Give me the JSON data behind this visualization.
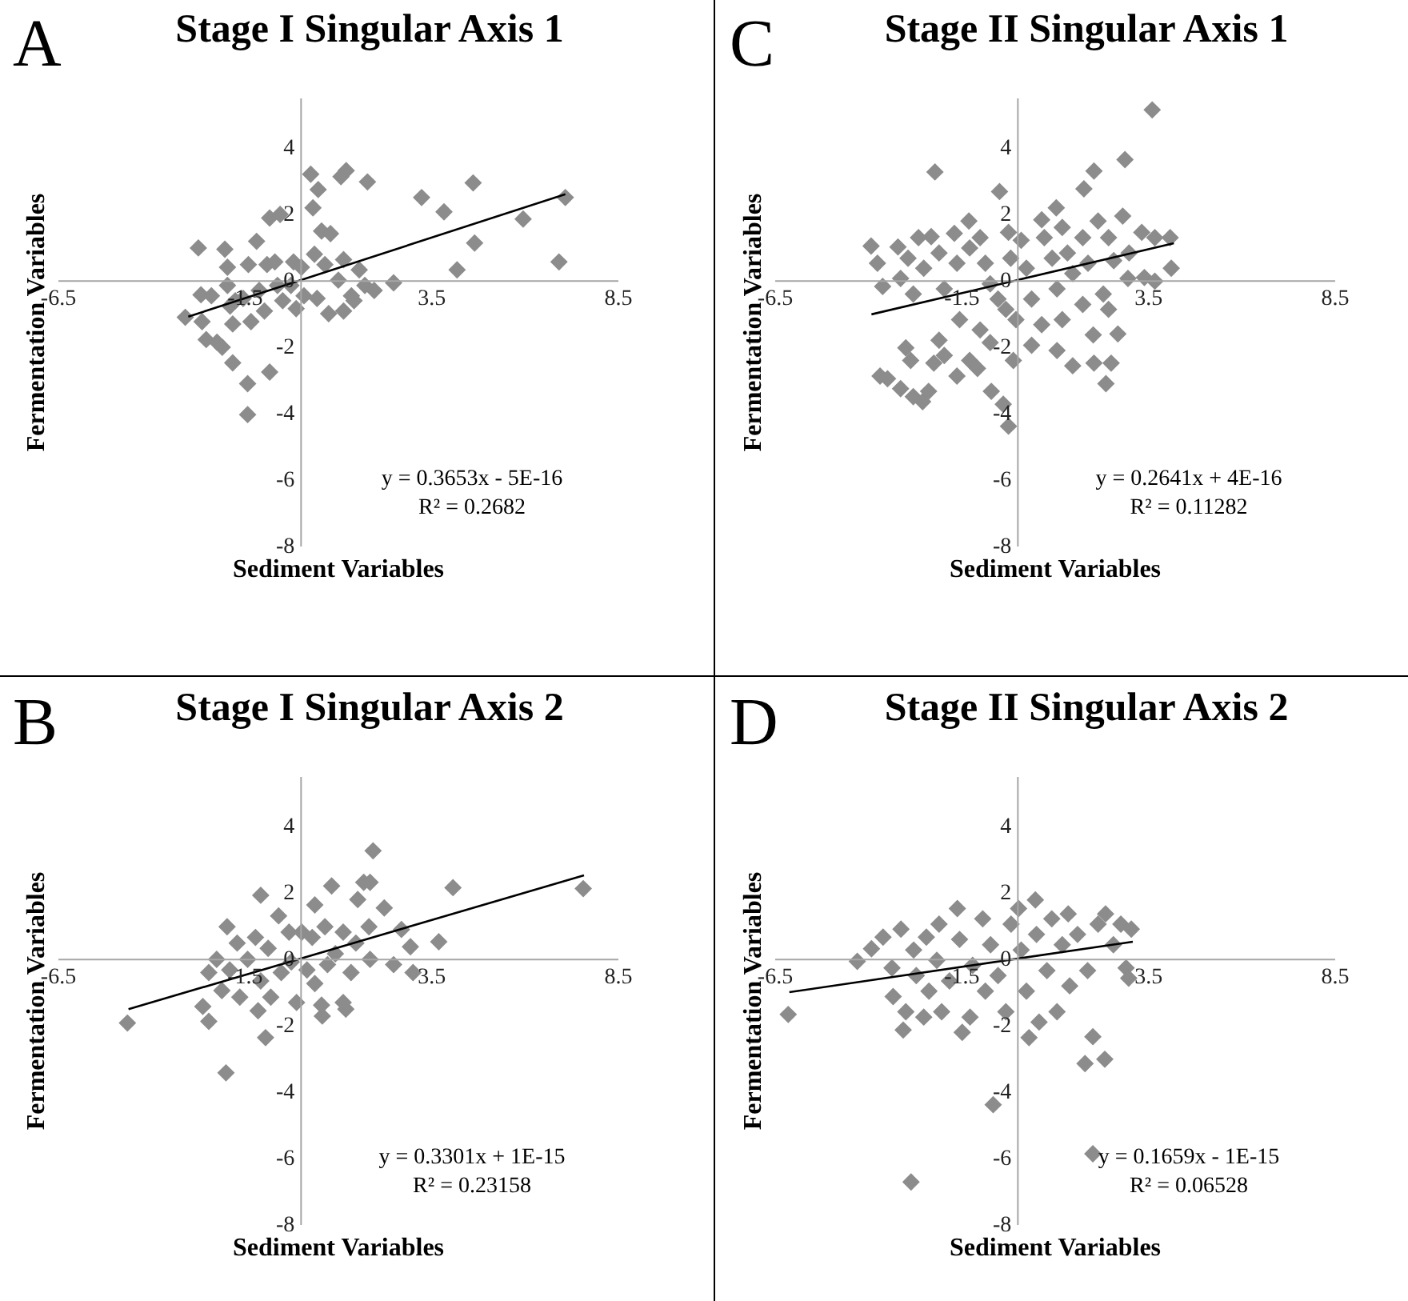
{
  "chart_data": [
    {
      "type": "scatter",
      "title": "Stage I Singular Axis 1",
      "xlabel": "Sediment Variables",
      "ylabel": "Fermentation Variables",
      "annotations": [
        "A",
        "y = 0.3653x - 5E-16",
        "R² = 0.2682"
      ],
      "xlim": [
        -6.5,
        8.5
      ],
      "ylim": [
        -8,
        5.5
      ],
      "xticks": [
        -6.5,
        -1.5,
        3.5,
        8.5
      ],
      "yticks": [
        -8,
        -6,
        -4,
        -2,
        0,
        2,
        4
      ],
      "series": [
        {
          "color": "#8c8c8c",
          "marker": "diamond",
          "x": [
            -3.08,
            -2.73,
            -2.66,
            -2.63,
            -2.52,
            -2.38,
            -2.23,
            -2.09,
            -2.02,
            -1.95,
            -1.95,
            -1.88,
            -1.81,
            -1.81,
            -1.74,
            -1.53,
            -1.41,
            -1.41,
            -1.39,
            -1.32,
            -1.17,
            -1.1,
            -0.96,
            -0.89,
            -0.82,
            -0.82,
            -0.54,
            -0.68,
            -0.61,
            -0.47,
            -0.25,
            -0.18,
            -0.11,
            0.03,
            0.1,
            0.28,
            0.34,
            0.48,
            0.38,
            0.45,
            0.57,
            0.66,
            0.76,
            0.81,
            1.02,
            1.09,
            1.23,
            1.16,
            1.16,
            1.37,
            1.44,
            1.58,
            1.8,
            1.73,
            1.98,
            2.5,
            3.25,
            3.85,
            4.2,
            4.63,
            4.67,
            5.97,
            6.93,
            7.1
          ],
          "values": [
            -1.12,
            0.97,
            -0.44,
            -1.25,
            -1.79,
            -0.47,
            -1.87,
            -2.02,
            0.93,
            0.39,
            -0.16,
            -0.78,
            -1.32,
            -2.49,
            -0.62,
            -0.55,
            -3.12,
            -4.05,
            0.47,
            -1.25,
            1.17,
            -0.31,
            -0.93,
            0.47,
            -2.77,
            1.87,
            1.98,
            0.55,
            -0.16,
            -0.62,
            -0.16,
            0.55,
            -0.86,
            0.39,
            -0.47,
            3.19,
            2.18,
            2.73,
            0.78,
            -0.55,
            1.48,
            0.47,
            -1.01,
            1.4,
            0,
            3.12,
            3.3,
            0.62,
            -0.93,
            -0.47,
            -0.62,
            0.31,
            2.96,
            -0.16,
            -0.31,
            -0.08,
            2.49,
            2.06,
            0.31,
            2.93,
            1.12,
            1.84,
            0.55,
            2.49
          ]
        },
        {
          "type": "line",
          "color": "#000000",
          "x": [
            -3.0,
            7.1
          ],
          "values": [
            -1.1,
            2.59
          ]
        }
      ]
    },
    {
      "type": "scatter",
      "title": "Stage II Singular Axis 1",
      "xlabel": "Sediment Variables",
      "ylabel": "Fermentation Variables",
      "annotations": [
        "C",
        "y = 0.2641x + 4E-16",
        "R² = 0.11282"
      ],
      "xlim": [
        -6.5,
        8.5
      ],
      "ylim": [
        -8,
        5.5
      ],
      "xticks": [
        -6.5,
        -1.5,
        3.5,
        8.5
      ],
      "yticks": [
        -8,
        -6,
        -4,
        -2,
        0,
        2,
        4
      ],
      "series": [
        {
          "color": "#8c8c8c",
          "marker": "diamond",
          "x": [
            3.62,
            2.89,
            2.06,
            1.79,
            -2.2,
            -0.47,
            1.05,
            -3.91,
            -3.74,
            -3.19,
            -3.6,
            -3.12,
            -2.92,
            -2.78,
            -2.64,
            -2.3,
            -2.5,
            -2.09,
            -1.95,
            -1.68,
            -1.61,
            -1.29,
            -1.27,
            -1.54,
            -0.99,
            -0.85,
            -0.72,
            -0.51,
            -0.23,
            -0.17,
            -0.3,
            0.11,
            0.25,
            0.39,
            0.66,
            0.73,
            0.94,
            1.07,
            1.21,
            1.35,
            1.49,
            1.76,
            1.9,
            2.17,
            2.45,
            2.59,
            2.83,
            3.0,
            3.34,
            3.69,
            4.1,
            4.13,
            2.97,
            3.41,
            3.69,
            -3.67,
            -3.47,
            -3.12,
            -2.98,
            -2.85,
            -2.78,
            -2.53,
            -2.37,
            -2.23,
            -2.09,
            -1.95,
            -1.61,
            -1.27,
            -1.06,
            -0.99,
            -0.72,
            -0.69,
            -0.37,
            -0.23,
            -0.1,
            -0.03,
            0.39,
            0.66,
            1.07,
            1.21,
            1.49,
            1.76,
            2.04,
            2.06,
            2.31,
            2.45,
            2.52,
            2.38,
            2.7
          ],
          "values": [
            5.13,
            3.63,
            3.29,
            2.75,
            3.26,
            2.67,
            2.18,
            1.03,
            0.51,
            1.0,
            -0.19,
            0.05,
            0.66,
            -0.42,
            1.28,
            1.31,
            0.36,
            0.82,
            -0.26,
            1.41,
            0.51,
            1.78,
            0.97,
            -1.19,
            1.28,
            0.51,
            -0.11,
            -0.57,
            1.44,
            0.66,
            -0.88,
            1.2,
            0.36,
            -0.57,
            1.82,
            1.28,
            0.66,
            -0.26,
            1.59,
            0.82,
            0.2,
            1.28,
            0.51,
            1.78,
            1.28,
            0.59,
            1.93,
            0.82,
            1.44,
            1.28,
            1.28,
            0.36,
            0.05,
            0.08,
            -0.03,
            -2.89,
            -2.97,
            -3.27,
            -2.04,
            -2.42,
            -3.51,
            -3.66,
            -3.35,
            -2.5,
            -1.81,
            -2.27,
            -2.89,
            -2.42,
            -2.66,
            -1.5,
            -1.88,
            -3.35,
            -3.74,
            -4.4,
            -2.42,
            -1.19,
            -1.96,
            -1.34,
            -2.12,
            -1.19,
            -2.58,
            -0.73,
            -1.65,
            -2.5,
            -0.42,
            -0.88,
            -2.5,
            -3.12,
            -1.62
          ]
        },
        {
          "type": "line",
          "color": "#000000",
          "x": [
            -3.9,
            4.2
          ],
          "values": [
            -1.03,
            1.11
          ]
        }
      ]
    },
    {
      "type": "scatter",
      "title": "Stage I Singular Axis 2",
      "xlabel": "Sediment Variables",
      "ylabel": "Fermentation Variables",
      "annotations": [
        "B",
        "y = 0.3301x + 1E-15",
        "R² = 0.23158"
      ],
      "xlim": [
        -6.5,
        8.5
      ],
      "ylim": [
        -8,
        5.5
      ],
      "xticks": [
        -6.5,
        -1.5,
        3.5,
        8.5
      ],
      "yticks": [
        -8,
        -6,
        -4,
        -2,
        0,
        2,
        4
      ],
      "series": [
        {
          "color": "#8c8c8c",
          "marker": "diamond",
          "x": [
            -4.63,
            -2.61,
            -2.45,
            -2.45,
            -2.24,
            -2.1,
            -1.99,
            -1.96,
            -1.89,
            -1.69,
            -1.62,
            -1.41,
            -1.2,
            -1.13,
            -1.06,
            -1.06,
            -0.93,
            -0.86,
            -0.79,
            -0.58,
            -0.51,
            -0.3,
            -0.24,
            -0.1,
            0.04,
            0.18,
            0.32,
            0.39,
            0.39,
            0.57,
            0.59,
            0.66,
            0.73,
            0.84,
            0.94,
            1.15,
            1.15,
            1.22,
            1.36,
            1.49,
            1.54,
            1.7,
            1.87,
            1.95,
            1.84,
            1.87,
            2.25,
            2.5,
            2.71,
            2.95,
            3.02,
            3.71,
            4.09,
            7.58
          ],
          "values": [
            -1.94,
            -1.44,
            -1.89,
            -0.42,
            -0.02,
            -0.96,
            -3.44,
            0.96,
            -0.34,
            0.47,
            -1.16,
            -0.02,
            0.64,
            -1.57,
            1.91,
            -0.67,
            -2.38,
            0.31,
            -1.16,
            1.29,
            -0.42,
            0.8,
            -0.1,
            -1.32,
            0.8,
            -0.34,
            0.64,
            1.62,
            -0.75,
            -1.4,
            -1.73,
            0.96,
            -0.18,
            2.19,
            0.15,
            0.8,
            -1.32,
            -1.52,
            -0.42,
            0.47,
            1.78,
            2.3,
            2.3,
            3.25,
            0.96,
            -0.02,
            1.53,
            -0.18,
            0.88,
            0.36,
            -0.42,
            0.51,
            2.14,
            2.11
          ]
        },
        {
          "type": "line",
          "color": "#000000",
          "x": [
            -4.6,
            7.6
          ],
          "values": [
            -1.52,
            2.51
          ]
        }
      ]
    },
    {
      "type": "scatter",
      "title": "Stage II Singular Axis 2",
      "xlabel": "Sediment Variables",
      "ylabel": "Fermentation Variables",
      "annotations": [
        "D",
        "y = 0.1659x - 1E-15",
        "R² = 0.06528"
      ],
      "xlim": [
        -6.5,
        8.5
      ],
      "ylim": [
        -8,
        5.5
      ],
      "xticks": [
        -6.5,
        -1.5,
        3.5,
        8.5
      ],
      "yticks": [
        -8,
        -6,
        -4,
        -2,
        0,
        2,
        4
      ],
      "series": [
        {
          "color": "#8c8c8c",
          "marker": "diamond",
          "x": [
            -6.13,
            -4.28,
            -3.9,
            -3.59,
            -3.35,
            -3.32,
            -3.11,
            -3.05,
            -2.98,
            -2.84,
            -2.77,
            -2.7,
            -2.5,
            -2.43,
            -2.36,
            -2.15,
            -2.09,
            -2.02,
            -1.81,
            -1.6,
            -1.54,
            -1.47,
            -1.26,
            -1.19,
            -0.92,
            -0.85,
            -0.71,
            -0.64,
            -0.51,
            -0.3,
            -0.16,
            0.04,
            0.11,
            0.25,
            0.32,
            0.49,
            0.52,
            0.59,
            0.8,
            0.93,
            1.07,
            1.21,
            1.37,
            1.41,
            1.62,
            1.82,
            1.89,
            2.03,
            2.03,
            2.17,
            2.35,
            2.37,
            2.58,
            2.78,
            2.92,
            3.06,
            2.99
          ],
          "values": [
            -1.68,
            -0.08,
            0.3,
            0.65,
            -0.28,
            -1.14,
            0.89,
            -2.15,
            -1.6,
            -6.73,
            0.26,
            -0.51,
            -1.76,
            0.65,
            -0.98,
            -0.05,
            1.04,
            -1.6,
            -0.67,
            1.51,
            0.58,
            -2.22,
            -1.76,
            -0.2,
            1.2,
            -0.98,
            0.42,
            -4.4,
            -0.51,
            -1.6,
            1.04,
            1.51,
            0.26,
            -0.98,
            -2.38,
            1.77,
            0.73,
            -1.91,
            -0.36,
            1.2,
            -1.6,
            0.42,
            1.35,
            -0.82,
            0.73,
            -3.16,
            -0.36,
            -2.35,
            -5.88,
            1.04,
            -3.03,
            1.35,
            0.42,
            1.04,
            -0.28,
            0.89,
            -0.59
          ]
        },
        {
          "type": "line",
          "color": "#000000",
          "x": [
            -6.1,
            3.1
          ],
          "values": [
            -1.01,
            0.51
          ]
        }
      ]
    }
  ]
}
